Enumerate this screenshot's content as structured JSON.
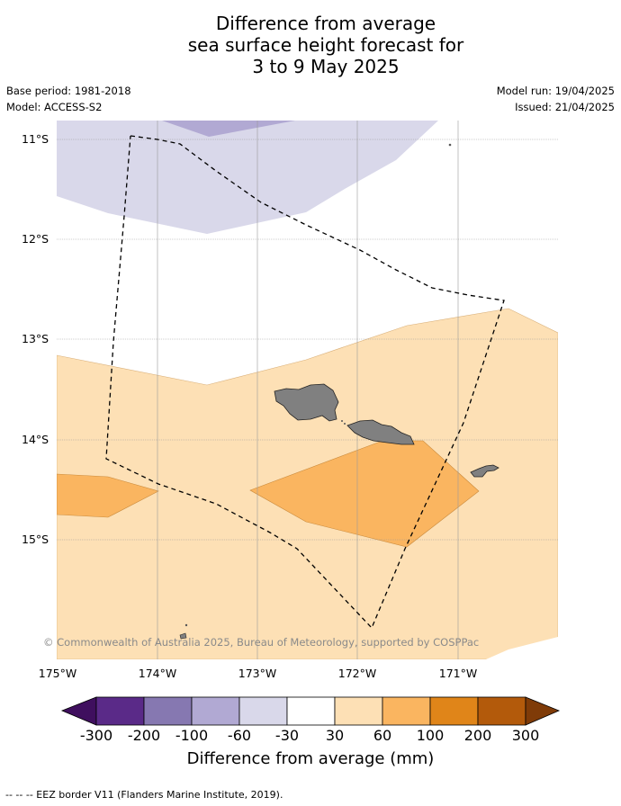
{
  "title": {
    "line1": "Difference from average",
    "line2": "sea surface height forecast for",
    "line3": "3 to 9 May 2025"
  },
  "meta": {
    "base_period": "Base period: 1981-2018",
    "model": "Model: ACCESS-S2",
    "model_run": "Model run: 19/04/2025",
    "issued": "Issued: 21/04/2025"
  },
  "axes": {
    "latitudes": [
      "11°S",
      "12°S",
      "13°S",
      "14°S",
      "15°S"
    ],
    "longitudes": [
      "175°W",
      "174°W",
      "173°W",
      "172°W",
      "171°W"
    ]
  },
  "copyright": "© Commonwealth of Australia 2025, Bureau of Meteorology, supported by COSPPac",
  "colorbar": {
    "ticks": [
      "-300",
      "-200",
      "-100",
      "-60",
      "-30",
      "30",
      "60",
      "100",
      "200",
      "300"
    ],
    "label": "Difference from average (mm)",
    "colors": [
      "#3f0f5e",
      "#5a2a88",
      "#8678b1",
      "#b1a9d3",
      "#d9d8ea",
      "#ffffff",
      "#fde0b5",
      "#fab560",
      "#e08519",
      "#b35a0b",
      "#7f3b08"
    ]
  },
  "footer": "--  --  -- EEZ border V11 (Flanders Marine Institute, 2019)."
}
